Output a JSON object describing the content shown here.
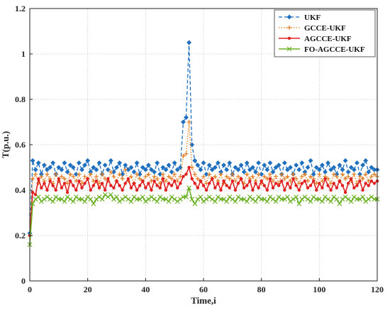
{
  "chart_data": {
    "type": "line",
    "title": "",
    "xlabel": "Time,i",
    "ylabel": "T(p.u.)",
    "xlim": [
      0,
      120
    ],
    "ylim": [
      0,
      1.2
    ],
    "xticks": [
      "0",
      "20",
      "40",
      "60",
      "80",
      "100",
      "120"
    ],
    "yticks": [
      "0",
      "0.2",
      "0.4",
      "0.6",
      "0.8",
      "1",
      "1.2"
    ],
    "grid": true,
    "legend_position": "top-right",
    "series": [
      {
        "name": "UKF",
        "color": "#1f6fbf",
        "marker": "diamond",
        "dash": "dashed",
        "x": [
          0,
          1,
          2,
          3,
          4,
          5,
          6,
          7,
          8,
          9,
          10,
          11,
          12,
          13,
          14,
          15,
          16,
          17,
          18,
          19,
          20,
          21,
          22,
          23,
          24,
          25,
          26,
          27,
          28,
          29,
          30,
          31,
          32,
          33,
          34,
          35,
          36,
          37,
          38,
          39,
          40,
          41,
          42,
          43,
          44,
          45,
          46,
          47,
          48,
          49,
          50,
          51,
          52,
          53,
          54,
          55,
          56,
          57,
          58,
          59,
          60,
          61,
          62,
          63,
          64,
          65,
          66,
          67,
          68,
          69,
          70,
          71,
          72,
          73,
          74,
          75,
          76,
          77,
          78,
          79,
          80,
          81,
          82,
          83,
          84,
          85,
          86,
          87,
          88,
          89,
          90,
          91,
          92,
          93,
          94,
          95,
          96,
          97,
          98,
          99,
          100,
          101,
          102,
          103,
          104,
          105,
          106,
          107,
          108,
          109,
          110,
          111,
          112,
          113,
          114,
          115,
          116,
          117,
          118,
          119,
          120
        ],
        "values": [
          0.21,
          0.53,
          0.49,
          0.52,
          0.47,
          0.51,
          0.49,
          0.5,
          0.52,
          0.47,
          0.5,
          0.49,
          0.52,
          0.48,
          0.51,
          0.5,
          0.47,
          0.52,
          0.49,
          0.51,
          0.53,
          0.48,
          0.5,
          0.49,
          0.52,
          0.47,
          0.51,
          0.49,
          0.53,
          0.48,
          0.5,
          0.52,
          0.47,
          0.51,
          0.49,
          0.5,
          0.48,
          0.52,
          0.47,
          0.5,
          0.49,
          0.51,
          0.49,
          0.48,
          0.52,
          0.47,
          0.5,
          0.49,
          0.51,
          0.48,
          0.52,
          0.49,
          0.5,
          0.7,
          0.72,
          1.05,
          0.6,
          0.53,
          0.51,
          0.49,
          0.52,
          0.47,
          0.51,
          0.49,
          0.5,
          0.52,
          0.48,
          0.51,
          0.49,
          0.52,
          0.47,
          0.5,
          0.49,
          0.51,
          0.48,
          0.52,
          0.49,
          0.5,
          0.48,
          0.52,
          0.47,
          0.51,
          0.49,
          0.52,
          0.48,
          0.5,
          0.51,
          0.47,
          0.52,
          0.49,
          0.5,
          0.47,
          0.51,
          0.49,
          0.52,
          0.48,
          0.5,
          0.53,
          0.47,
          0.5,
          0.49,
          0.51,
          0.48,
          0.52,
          0.49,
          0.5,
          0.47,
          0.51,
          0.49,
          0.53,
          0.48,
          0.5,
          0.49,
          0.52,
          0.47,
          0.51,
          0.53,
          0.48,
          0.5,
          0.49,
          0.49
        ]
      },
      {
        "name": "GCCE-UKF",
        "color": "#e07b20",
        "marker": "plus",
        "dash": "dotted",
        "x": [
          0,
          1,
          2,
          3,
          4,
          5,
          6,
          7,
          8,
          9,
          10,
          11,
          12,
          13,
          14,
          15,
          16,
          17,
          18,
          19,
          20,
          21,
          22,
          23,
          24,
          25,
          26,
          27,
          28,
          29,
          30,
          31,
          32,
          33,
          34,
          35,
          36,
          37,
          38,
          39,
          40,
          41,
          42,
          43,
          44,
          45,
          46,
          47,
          48,
          49,
          50,
          51,
          52,
          53,
          54,
          55,
          56,
          57,
          58,
          59,
          60,
          61,
          62,
          63,
          64,
          65,
          66,
          67,
          68,
          69,
          70,
          71,
          72,
          73,
          74,
          75,
          76,
          77,
          78,
          79,
          80,
          81,
          82,
          83,
          84,
          85,
          86,
          87,
          88,
          89,
          90,
          91,
          92,
          93,
          94,
          95,
          96,
          97,
          98,
          99,
          100,
          101,
          102,
          103,
          104,
          105,
          106,
          107,
          108,
          109,
          110,
          111,
          112,
          113,
          114,
          115,
          116,
          117,
          118,
          119,
          120
        ],
        "values": [
          0.2,
          0.45,
          0.47,
          0.43,
          0.46,
          0.44,
          0.47,
          0.45,
          0.43,
          0.47,
          0.44,
          0.46,
          0.45,
          0.43,
          0.47,
          0.46,
          0.44,
          0.47,
          0.43,
          0.46,
          0.45,
          0.47,
          0.44,
          0.46,
          0.43,
          0.47,
          0.45,
          0.44,
          0.48,
          0.46,
          0.44,
          0.47,
          0.45,
          0.49,
          0.44,
          0.46,
          0.43,
          0.47,
          0.45,
          0.44,
          0.46,
          0.47,
          0.44,
          0.46,
          0.45,
          0.43,
          0.47,
          0.44,
          0.46,
          0.45,
          0.47,
          0.44,
          0.46,
          0.55,
          0.56,
          0.7,
          0.5,
          0.47,
          0.45,
          0.44,
          0.46,
          0.43,
          0.47,
          0.45,
          0.46,
          0.44,
          0.47,
          0.43,
          0.46,
          0.45,
          0.47,
          0.44,
          0.46,
          0.45,
          0.43,
          0.47,
          0.45,
          0.46,
          0.44,
          0.47,
          0.43,
          0.46,
          0.45,
          0.47,
          0.44,
          0.46,
          0.43,
          0.47,
          0.45,
          0.46,
          0.44,
          0.47,
          0.45,
          0.43,
          0.46,
          0.47,
          0.44,
          0.46,
          0.45,
          0.43,
          0.47,
          0.44,
          0.46,
          0.45,
          0.43,
          0.47,
          0.46,
          0.44,
          0.47,
          0.45,
          0.46,
          0.44,
          0.47,
          0.43,
          0.46,
          0.45,
          0.47,
          0.44,
          0.46,
          0.47,
          0.46
        ]
      },
      {
        "name": "AGCCE-UKF",
        "color": "#e02020",
        "marker": "dot",
        "dash": "solid",
        "x": [
          0,
          1,
          2,
          3,
          4,
          5,
          6,
          7,
          8,
          9,
          10,
          11,
          12,
          13,
          14,
          15,
          16,
          17,
          18,
          19,
          20,
          21,
          22,
          23,
          24,
          25,
          26,
          27,
          28,
          29,
          30,
          31,
          32,
          33,
          34,
          35,
          36,
          37,
          38,
          39,
          40,
          41,
          42,
          43,
          44,
          45,
          46,
          47,
          48,
          49,
          50,
          51,
          52,
          53,
          54,
          55,
          56,
          57,
          58,
          59,
          60,
          61,
          62,
          63,
          64,
          65,
          66,
          67,
          68,
          69,
          70,
          71,
          72,
          73,
          74,
          75,
          76,
          77,
          78,
          79,
          80,
          81,
          82,
          83,
          84,
          85,
          86,
          87,
          88,
          89,
          90,
          91,
          92,
          93,
          94,
          95,
          96,
          97,
          98,
          99,
          100,
          101,
          102,
          103,
          104,
          105,
          106,
          107,
          108,
          109,
          110,
          111,
          112,
          113,
          114,
          115,
          116,
          117,
          118,
          119,
          120
        ],
        "values": [
          0.2,
          0.39,
          0.38,
          0.45,
          0.41,
          0.43,
          0.4,
          0.44,
          0.42,
          0.4,
          0.45,
          0.41,
          0.43,
          0.39,
          0.44,
          0.42,
          0.4,
          0.44,
          0.41,
          0.43,
          0.45,
          0.4,
          0.42,
          0.44,
          0.41,
          0.43,
          0.4,
          0.45,
          0.42,
          0.41,
          0.44,
          0.42,
          0.4,
          0.43,
          0.45,
          0.41,
          0.43,
          0.4,
          0.42,
          0.44,
          0.41,
          0.43,
          0.4,
          0.44,
          0.42,
          0.41,
          0.45,
          0.4,
          0.43,
          0.42,
          0.44,
          0.41,
          0.43,
          0.46,
          0.47,
          0.5,
          0.45,
          0.43,
          0.41,
          0.44,
          0.42,
          0.4,
          0.43,
          0.45,
          0.41,
          0.43,
          0.4,
          0.44,
          0.42,
          0.41,
          0.44,
          0.4,
          0.43,
          0.45,
          0.41,
          0.42,
          0.44,
          0.4,
          0.43,
          0.41,
          0.44,
          0.42,
          0.4,
          0.45,
          0.41,
          0.43,
          0.42,
          0.44,
          0.4,
          0.43,
          0.41,
          0.45,
          0.42,
          0.4,
          0.43,
          0.44,
          0.41,
          0.42,
          0.44,
          0.4,
          0.43,
          0.41,
          0.45,
          0.42,
          0.4,
          0.43,
          0.41,
          0.44,
          0.42,
          0.39,
          0.43,
          0.45,
          0.41,
          0.42,
          0.44,
          0.4,
          0.43,
          0.42,
          0.44,
          0.43,
          0.44
        ]
      },
      {
        "name": "FO-AGCCE-UKF",
        "color": "#6ab023",
        "marker": "cross",
        "dash": "solid",
        "x": [
          0,
          1,
          2,
          3,
          4,
          5,
          6,
          7,
          8,
          9,
          10,
          11,
          12,
          13,
          14,
          15,
          16,
          17,
          18,
          19,
          20,
          21,
          22,
          23,
          24,
          25,
          26,
          27,
          28,
          29,
          30,
          31,
          32,
          33,
          34,
          35,
          36,
          37,
          38,
          39,
          40,
          41,
          42,
          43,
          44,
          45,
          46,
          47,
          48,
          49,
          50,
          51,
          52,
          53,
          54,
          55,
          56,
          57,
          58,
          59,
          60,
          61,
          62,
          63,
          64,
          65,
          66,
          67,
          68,
          69,
          70,
          71,
          72,
          73,
          74,
          75,
          76,
          77,
          78,
          79,
          80,
          81,
          82,
          83,
          84,
          85,
          86,
          87,
          88,
          89,
          90,
          91,
          92,
          93,
          94,
          95,
          96,
          97,
          98,
          99,
          100,
          101,
          102,
          103,
          104,
          105,
          106,
          107,
          108,
          109,
          110,
          111,
          112,
          113,
          114,
          115,
          116,
          117,
          118,
          119,
          120
        ],
        "values": [
          0.16,
          0.34,
          0.36,
          0.37,
          0.35,
          0.36,
          0.37,
          0.36,
          0.35,
          0.37,
          0.36,
          0.36,
          0.35,
          0.37,
          0.36,
          0.35,
          0.37,
          0.36,
          0.36,
          0.35,
          0.37,
          0.36,
          0.34,
          0.36,
          0.37,
          0.36,
          0.38,
          0.37,
          0.38,
          0.36,
          0.37,
          0.35,
          0.36,
          0.37,
          0.36,
          0.35,
          0.37,
          0.36,
          0.36,
          0.37,
          0.35,
          0.36,
          0.37,
          0.36,
          0.35,
          0.37,
          0.36,
          0.36,
          0.35,
          0.37,
          0.36,
          0.35,
          0.36,
          0.37,
          0.37,
          0.41,
          0.36,
          0.34,
          0.36,
          0.37,
          0.35,
          0.36,
          0.37,
          0.36,
          0.35,
          0.37,
          0.36,
          0.36,
          0.35,
          0.37,
          0.36,
          0.35,
          0.37,
          0.36,
          0.36,
          0.35,
          0.37,
          0.36,
          0.35,
          0.37,
          0.36,
          0.36,
          0.35,
          0.37,
          0.36,
          0.35,
          0.37,
          0.36,
          0.36,
          0.37,
          0.35,
          0.36,
          0.37,
          0.34,
          0.36,
          0.37,
          0.36,
          0.35,
          0.37,
          0.36,
          0.36,
          0.35,
          0.37,
          0.36,
          0.35,
          0.37,
          0.36,
          0.34,
          0.36,
          0.37,
          0.36,
          0.35,
          0.37,
          0.36,
          0.36,
          0.37,
          0.35,
          0.36,
          0.37,
          0.36,
          0.36
        ]
      }
    ]
  }
}
